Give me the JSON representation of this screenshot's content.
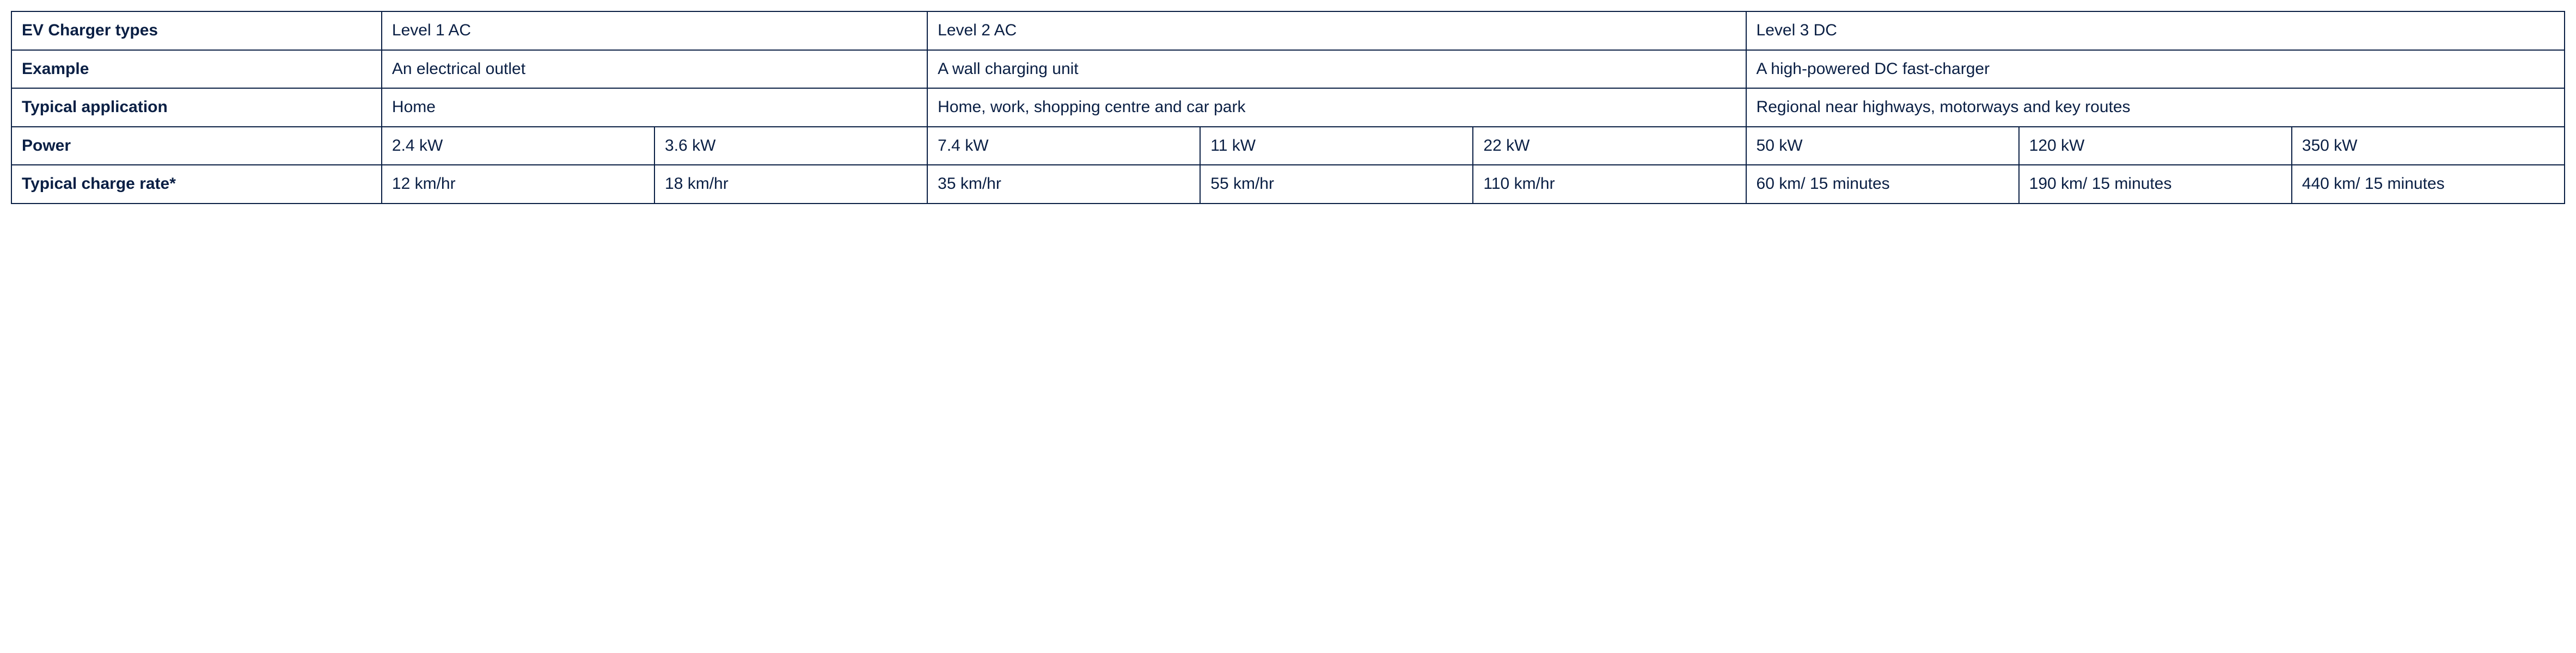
{
  "table": {
    "type": "table",
    "border_color": "#0a1f44",
    "text_color": "#0a1f44",
    "background_color": "#ffffff",
    "header_font_weight": 700,
    "body_font_weight": 400,
    "font_size_pt": 22,
    "rows": {
      "charger_types": {
        "label": "EV Charger types",
        "level1": "Level 1 AC",
        "level2": "Level 2 AC",
        "level3": "Level 3 DC"
      },
      "example": {
        "label": "Example",
        "level1": "An electrical outlet",
        "level2": "A wall charging unit",
        "level3": "A high-powered DC fast-charger"
      },
      "application": {
        "label": "Typical application",
        "level1": "Home",
        "level2": "Home, work, shopping centre and car park",
        "level3": "Regional near highways, motorways and key routes"
      },
      "power": {
        "label": "Power",
        "values": [
          "2.4 kW",
          "3.6 kW",
          "7.4 kW",
          "11 kW",
          "22 kW",
          "50 kW",
          "120 kW",
          "350 kW"
        ]
      },
      "charge_rate": {
        "label": "Typical charge rate*",
        "values": [
          "12 km/hr",
          "18 km/hr",
          "35 km/hr",
          "55 km/hr",
          "110 km/hr",
          "60 km/ 15 minutes",
          "190 km/ 15 minutes",
          "440 km/ 15 minutes"
        ]
      }
    }
  }
}
